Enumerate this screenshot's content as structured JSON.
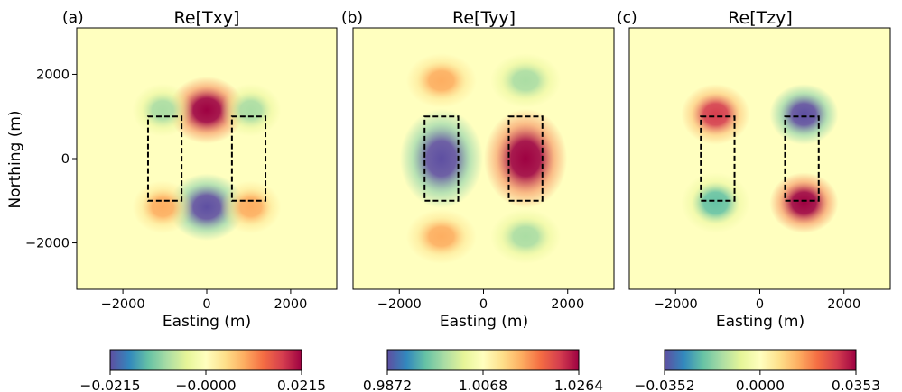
{
  "colors": {
    "colormap": [
      "#5e4fa2",
      "#3288bd",
      "#66c2a5",
      "#abdda4",
      "#e6f598",
      "#ffffbf",
      "#fee08b",
      "#fdae61",
      "#f46d43",
      "#d53e4f",
      "#9e0142"
    ],
    "background": "#f4f9b4",
    "block_outline": "#000000"
  },
  "chart_data": [
    {
      "type": "heatmap",
      "panel_label": "(a)",
      "title": "Re[Txy]",
      "xlabel": "Easting (m)",
      "ylabel": "Northing (m)",
      "xlim": [
        -3100,
        3100
      ],
      "ylim": [
        -3100,
        3100
      ],
      "x_ticks": [
        -2000,
        0,
        2000
      ],
      "x_tick_labels": [
        "−2000",
        "0",
        "2000"
      ],
      "y_ticks": [
        -2000,
        0,
        2000
      ],
      "y_tick_labels": [
        "−2000",
        "0",
        "2000"
      ],
      "colorbar": {
        "min": -0.0215,
        "max": 0.0215,
        "tick_values": [
          -0.0215,
          0.0,
          0.0215
        ],
        "tick_labels": [
          "−0.0215",
          "−0.0000",
          "0.0215"
        ]
      },
      "blocks": [
        {
          "x": [
            -1400,
            -600
          ],
          "y": [
            -1000,
            1000
          ]
        },
        {
          "x": [
            600,
            1400
          ],
          "y": [
            -1000,
            1000
          ]
        }
      ],
      "features": [
        {
          "x": 0,
          "y": 1150,
          "value": 0.0215,
          "sx": 480,
          "sy": 420
        },
        {
          "x": 0,
          "y": -1150,
          "value": -0.0215,
          "sx": 480,
          "sy": 420
        },
        {
          "x": -1050,
          "y": 1150,
          "value": -0.0075,
          "sx": 380,
          "sy": 330
        },
        {
          "x": 1050,
          "y": 1150,
          "value": -0.0075,
          "sx": 380,
          "sy": 330
        },
        {
          "x": -1050,
          "y": -1150,
          "value": 0.0085,
          "sx": 380,
          "sy": 330
        },
        {
          "x": 1050,
          "y": -1150,
          "value": 0.0085,
          "sx": 380,
          "sy": 330
        }
      ]
    },
    {
      "type": "heatmap",
      "panel_label": "(b)",
      "title": "Re[Tyy]",
      "xlabel": "Easting (m)",
      "ylabel": "",
      "xlim": [
        -3100,
        3100
      ],
      "ylim": [
        -3100,
        3100
      ],
      "x_ticks": [
        -2000,
        0,
        2000
      ],
      "x_tick_labels": [
        "−2000",
        "0",
        "2000"
      ],
      "y_ticks": [],
      "y_tick_labels": [],
      "colorbar": {
        "min": 0.9872,
        "max": 1.0264,
        "tick_values": [
          0.9872,
          1.0068,
          1.0264
        ],
        "tick_labels": [
          "0.9872",
          "1.0068",
          "1.0264"
        ]
      },
      "blocks": [
        {
          "x": [
            -1400,
            -600
          ],
          "y": [
            -1000,
            1000
          ]
        },
        {
          "x": [
            600,
            1400
          ],
          "y": [
            -1000,
            1000
          ]
        }
      ],
      "features": [
        {
          "x": -1000,
          "y": 0,
          "value": 0.9872,
          "sx": 520,
          "sy": 620
        },
        {
          "x": 1000,
          "y": 0,
          "value": 1.0264,
          "sx": 520,
          "sy": 620
        },
        {
          "x": 1000,
          "y": 1850,
          "value": 1.0005,
          "sx": 440,
          "sy": 340
        },
        {
          "x": 1000,
          "y": -1850,
          "value": 1.0005,
          "sx": 440,
          "sy": 340
        },
        {
          "x": -1000,
          "y": 1850,
          "value": 1.0135,
          "sx": 440,
          "sy": 340
        },
        {
          "x": -1000,
          "y": -1850,
          "value": 1.0135,
          "sx": 440,
          "sy": 340
        }
      ]
    },
    {
      "type": "heatmap",
      "panel_label": "(c)",
      "title": "Re[Tzy]",
      "xlabel": "Easting (m)",
      "ylabel": "",
      "xlim": [
        -3100,
        3100
      ],
      "ylim": [
        -3100,
        3100
      ],
      "x_ticks": [
        -2000,
        0,
        2000
      ],
      "x_tick_labels": [
        "−2000",
        "0",
        "2000"
      ],
      "y_ticks": [],
      "y_tick_labels": [],
      "colorbar": {
        "min": -0.0352,
        "max": 0.0353,
        "tick_values": [
          -0.0352,
          0.0,
          0.0353
        ],
        "tick_labels": [
          "−0.0352",
          "0.0000",
          "0.0353"
        ]
      },
      "blocks": [
        {
          "x": [
            -1400,
            -600
          ],
          "y": [
            -1000,
            1000
          ]
        },
        {
          "x": [
            600,
            1400
          ],
          "y": [
            -1000,
            1000
          ]
        }
      ],
      "features": [
        {
          "x": -1050,
          "y": 1050,
          "value": 0.03,
          "sx": 430,
          "sy": 380
        },
        {
          "x": -1050,
          "y": -1050,
          "value": -0.018,
          "sx": 430,
          "sy": 380
        },
        {
          "x": 1050,
          "y": 1050,
          "value": -0.0352,
          "sx": 430,
          "sy": 380
        },
        {
          "x": 1050,
          "y": -1050,
          "value": 0.0353,
          "sx": 430,
          "sy": 380
        }
      ]
    }
  ]
}
